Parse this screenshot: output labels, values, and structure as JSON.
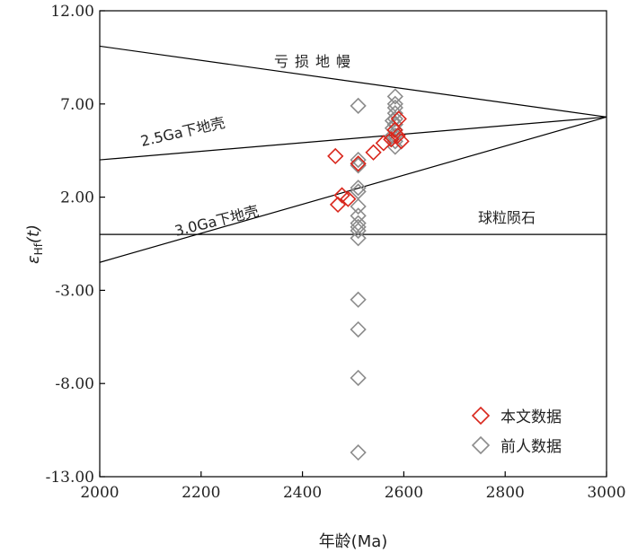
{
  "chart_data": {
    "type": "scatter",
    "xlabel": "年龄(Ma)",
    "ylabel_main": "ε",
    "ylabel_sub": "Hf",
    "ylabel_tail": "(t)",
    "xlim": [
      2000,
      3000
    ],
    "ylim": [
      -13,
      12
    ],
    "x_ticks": [
      2000,
      2200,
      2400,
      2600,
      2800,
      3000
    ],
    "y_ticks": [
      -13,
      -8,
      -3,
      2,
      7,
      12
    ],
    "y_tick_labels": [
      "-13.00",
      "-8.00",
      "-3.00",
      "2.00",
      "7.00",
      "12.00"
    ],
    "x_tick_labels": [
      "2000",
      "2200",
      "2400",
      "2600",
      "2800",
      "3000"
    ],
    "grid": false,
    "legend_position": "bottom-right",
    "reference_lines": [
      {
        "label": "亏损地幔",
        "x": [
          2000,
          3000
        ],
        "y": [
          10.1,
          6.3
        ]
      },
      {
        "label": "2.5Ga下地壳",
        "x": [
          2000,
          3000
        ],
        "y": [
          4.0,
          6.3
        ]
      },
      {
        "label": "3.0Ga下地壳",
        "x": [
          2000,
          3000
        ],
        "y": [
          -1.5,
          6.3
        ]
      },
      {
        "label": "球粒陨石",
        "x": [
          2000,
          3000
        ],
        "y": [
          0,
          0
        ]
      }
    ],
    "series": [
      {
        "name": "本文数据",
        "color": "#d9261c",
        "points": [
          [
            2465,
            4.2
          ],
          [
            2470,
            1.6
          ],
          [
            2478,
            2.1
          ],
          [
            2490,
            1.9
          ],
          [
            2510,
            3.8
          ],
          [
            2540,
            4.4
          ],
          [
            2560,
            4.9
          ],
          [
            2575,
            5.1
          ],
          [
            2582,
            5.6
          ],
          [
            2588,
            5.3
          ],
          [
            2590,
            6.2
          ],
          [
            2595,
            5.0
          ]
        ]
      },
      {
        "name": "前人数据",
        "color": "#8c8c8c",
        "points": [
          [
            2510,
            6.9
          ],
          [
            2510,
            4.0
          ],
          [
            2510,
            3.7
          ],
          [
            2510,
            2.5
          ],
          [
            2510,
            2.3
          ],
          [
            2510,
            1.5
          ],
          [
            2510,
            1.0
          ],
          [
            2510,
            0.6
          ],
          [
            2510,
            0.4
          ],
          [
            2510,
            0.2
          ],
          [
            2510,
            -0.2
          ],
          [
            2510,
            -3.5
          ],
          [
            2510,
            -5.1
          ],
          [
            2510,
            -7.7
          ],
          [
            2510,
            -11.7
          ],
          [
            2583,
            7.4
          ],
          [
            2583,
            7.0
          ],
          [
            2583,
            6.8
          ],
          [
            2583,
            6.5
          ],
          [
            2583,
            6.2
          ],
          [
            2583,
            5.9
          ],
          [
            2583,
            5.6
          ],
          [
            2583,
            5.3
          ],
          [
            2583,
            5.0
          ],
          [
            2583,
            4.7
          ],
          [
            2578,
            6.1
          ],
          [
            2578,
            5.7
          ],
          [
            2578,
            5.3
          ]
        ]
      }
    ]
  }
}
